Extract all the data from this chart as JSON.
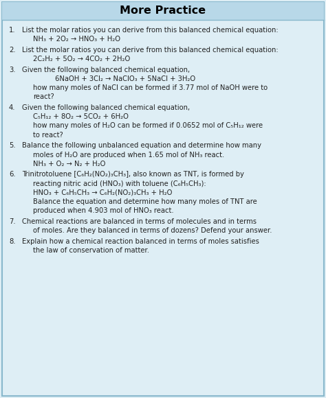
{
  "title": "More Practice",
  "title_bg": "#b8d8e8",
  "body_bg": "#deeef5",
  "border_color": "#88b8cc",
  "title_color": "#000000",
  "text_color": "#222222",
  "fig_width": 4.74,
  "fig_height": 5.8,
  "dpi": 100,
  "items": [
    {
      "num": "1.",
      "lines": [
        {
          "text": "List the molar ratios you can derive from this balanced chemical equation:",
          "indent": 0
        },
        {
          "text": "NH₃ + 2O₂ → HNO₃ + H₂O",
          "indent": 1
        }
      ]
    },
    {
      "num": "2.",
      "lines": [
        {
          "text": "List the molar ratios you can derive from this balanced chemical equation:",
          "indent": 0
        },
        {
          "text": "2C₂H₂ + 5O₂ → 4CO₂ + 2H₂O",
          "indent": 1
        }
      ]
    },
    {
      "num": "3.",
      "lines": [
        {
          "text": "Given the following balanced chemical equation,",
          "indent": 0
        },
        {
          "text": "6NaOH + 3Cl₂ → NaClO₃ + 5NaCl + 3H₂O",
          "indent": 2
        },
        {
          "text": "how many moles of NaCl can be formed if 3.77 mol of NaOH were to",
          "indent": 1
        },
        {
          "text": "react?",
          "indent": 1
        }
      ]
    },
    {
      "num": "4.",
      "lines": [
        {
          "text": "Given the following balanced chemical equation,",
          "indent": 0
        },
        {
          "text": "C₅H₁₂ + 8O₂ → 5CO₂ + 6H₂O",
          "indent": 1
        },
        {
          "text": "how many moles of H₂O can be formed if 0.0652 mol of C₅H₁₂ were",
          "indent": 1
        },
        {
          "text": "to react?",
          "indent": 1
        }
      ]
    },
    {
      "num": "5.",
      "lines": [
        {
          "text": "Balance the following unbalanced equation and determine how many",
          "indent": 0
        },
        {
          "text": "moles of H₂O are produced when 1.65 mol of NH₃ react.",
          "indent": 1
        },
        {
          "text": "NH₃ + O₂ → N₂ + H₂O",
          "indent": 1
        }
      ]
    },
    {
      "num": "6.",
      "lines": [
        {
          "text": "Trinitrotoluene [C₆H₂(NO₂)₃CH₃], also known as TNT, is formed by",
          "indent": 0
        },
        {
          "text": "reacting nitric acid (HNO₃) with toluene (C₆H₅CH₃):",
          "indent": 1
        },
        {
          "text": "HNO₃ + C₆H₅CH₃ → C₆H₂(NO₂)₃CH₃ + H₂O",
          "indent": 1
        },
        {
          "text": "Balance the equation and determine how many moles of TNT are",
          "indent": 1
        },
        {
          "text": "produced when 4.903 mol of HNO₃ react.",
          "indent": 1
        }
      ]
    },
    {
      "num": "7.",
      "lines": [
        {
          "text": "Chemical reactions are balanced in terms of molecules and in terms",
          "indent": 0
        },
        {
          "text": "of moles. Are they balanced in terms of dozens? Defend your answer.",
          "indent": 1
        }
      ]
    },
    {
      "num": "8.",
      "lines": [
        {
          "text": "Explain how a chemical reaction balanced in terms of moles satisfies",
          "indent": 0
        },
        {
          "text": "the law of conservation of matter.",
          "indent": 1
        }
      ]
    }
  ]
}
